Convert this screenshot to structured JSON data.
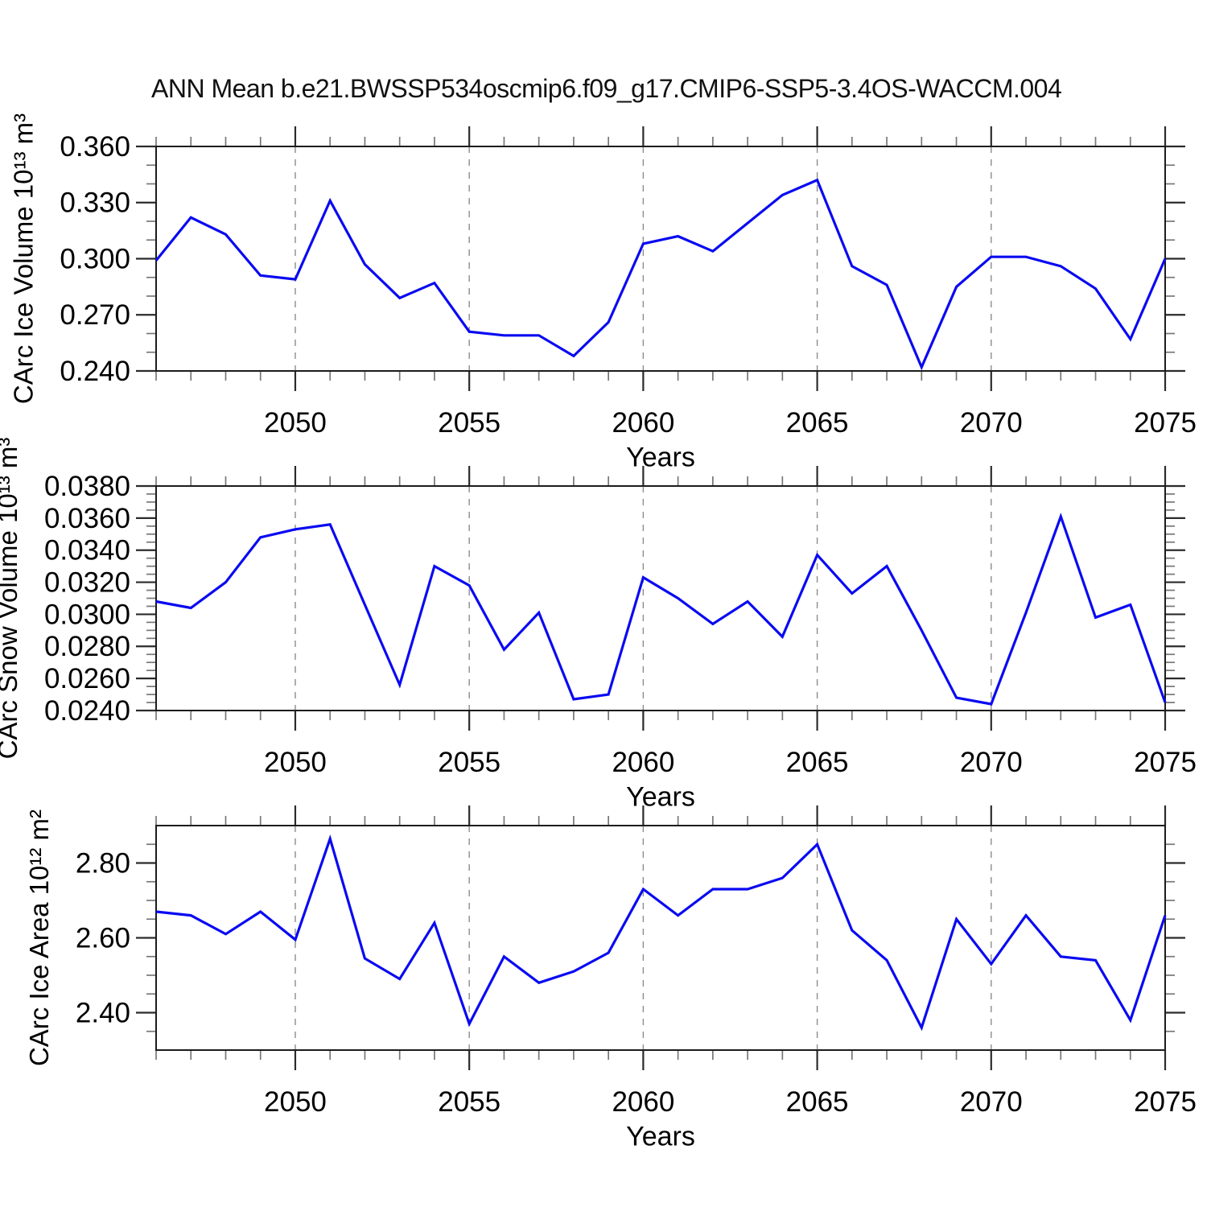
{
  "title": "ANN Mean b.e21.BWSSP534oscmip6.f09_g17.CMIP6-SSP5-3.4OS-WACCM.004",
  "frame_color": "#1c1c1c",
  "grid_color": "#8c8c8c",
  "text_color": "#000000",
  "chart_data": [
    {
      "id": "ice-volume",
      "type": "line",
      "ylabel": "CArc Ice Volume 10¹³ m³",
      "xlabel": "Years",
      "line_color": "#0a0af2",
      "xlim": [
        2046,
        2075
      ],
      "ylim": [
        0.24,
        0.36
      ],
      "x": [
        2046,
        2047,
        2048,
        2049,
        2050,
        2051,
        2052,
        2053,
        2054,
        2055,
        2056,
        2057,
        2058,
        2059,
        2060,
        2061,
        2062,
        2063,
        2064,
        2065,
        2066,
        2067,
        2068,
        2069,
        2070,
        2071,
        2072,
        2073,
        2074,
        2075
      ],
      "values": [
        0.299,
        0.322,
        0.313,
        0.291,
        0.289,
        0.331,
        0.297,
        0.279,
        0.287,
        0.261,
        0.259,
        0.259,
        0.248,
        0.266,
        0.308,
        0.312,
        0.304,
        0.319,
        0.334,
        0.342,
        0.296,
        0.286,
        0.242,
        0.285,
        0.301,
        0.301,
        0.296,
        0.284,
        0.257,
        0.3
      ],
      "yticks": [
        0.24,
        0.27,
        0.3,
        0.33,
        0.36
      ],
      "ytick_labels": [
        "0.240",
        "0.270",
        "0.300",
        "0.330",
        "0.360"
      ],
      "y_minor_step": 0.01,
      "xticks": [
        2050,
        2055,
        2060,
        2065,
        2070,
        2075
      ],
      "xtick_labels": [
        "2050",
        "2055",
        "2060",
        "2065",
        "2070",
        "2075"
      ],
      "x_minor_step": 1,
      "gridlines_x": [
        2050,
        2055,
        2060,
        2065,
        2070
      ],
      "grid_style": "dashed-vertical",
      "legend": "none"
    },
    {
      "id": "snow-volume",
      "type": "line",
      "ylabel": "CArc Snow Volume 10¹³ m³",
      "xlabel": "Years",
      "line_color": "#0a0af2",
      "xlim": [
        2046,
        2075
      ],
      "ylim": [
        0.024,
        0.038
      ],
      "x": [
        2046,
        2047,
        2048,
        2049,
        2050,
        2051,
        2052,
        2053,
        2054,
        2055,
        2056,
        2057,
        2058,
        2059,
        2060,
        2061,
        2062,
        2063,
        2064,
        2065,
        2066,
        2067,
        2068,
        2069,
        2070,
        2071,
        2072,
        2073,
        2074,
        2075
      ],
      "values": [
        0.0308,
        0.0304,
        0.032,
        0.0348,
        0.0353,
        0.0356,
        0.0306,
        0.0256,
        0.033,
        0.0318,
        0.0278,
        0.0301,
        0.0247,
        0.025,
        0.0323,
        0.031,
        0.0294,
        0.0308,
        0.0286,
        0.0337,
        0.0313,
        0.033,
        0.029,
        0.0248,
        0.0244,
        0.0301,
        0.0361,
        0.0298,
        0.0306,
        0.0245
      ],
      "yticks": [
        0.024,
        0.026,
        0.028,
        0.03,
        0.032,
        0.034,
        0.036,
        0.038
      ],
      "ytick_labels": [
        "0.0240",
        "0.0260",
        "0.0280",
        "0.0300",
        "0.0320",
        "0.0340",
        "0.0360",
        "0.0380"
      ],
      "y_minor_step": 0.0005,
      "xticks": [
        2050,
        2055,
        2060,
        2065,
        2070,
        2075
      ],
      "xtick_labels": [
        "2050",
        "2055",
        "2060",
        "2065",
        "2070",
        "2075"
      ],
      "x_minor_step": 1,
      "gridlines_x": [
        2050,
        2055,
        2060,
        2065,
        2070
      ],
      "grid_style": "dashed-vertical",
      "legend": "none"
    },
    {
      "id": "ice-area",
      "type": "line",
      "ylabel": "CArc Ice Area 10¹² m²",
      "xlabel": "Years",
      "line_color": "#0a0af2",
      "xlim": [
        2046,
        2075
      ],
      "ylim": [
        2.3,
        2.9
      ],
      "x": [
        2046,
        2047,
        2048,
        2049,
        2050,
        2051,
        2052,
        2053,
        2054,
        2055,
        2056,
        2057,
        2058,
        2059,
        2060,
        2061,
        2062,
        2063,
        2064,
        2065,
        2066,
        2067,
        2068,
        2069,
        2070,
        2071,
        2072,
        2073,
        2074,
        2075
      ],
      "values": [
        2.67,
        2.66,
        2.61,
        2.67,
        2.595,
        2.865,
        2.545,
        2.49,
        2.64,
        2.37,
        2.55,
        2.48,
        2.51,
        2.56,
        2.73,
        2.66,
        2.73,
        2.73,
        2.76,
        2.85,
        2.62,
        2.54,
        2.36,
        2.65,
        2.53,
        2.66,
        2.55,
        2.54,
        2.38,
        2.66
      ],
      "yticks": [
        2.4,
        2.6,
        2.8
      ],
      "ytick_labels": [
        "2.40",
        "2.60",
        "2.80"
      ],
      "y_minor_step": 0.05,
      "xticks": [
        2050,
        2055,
        2060,
        2065,
        2070,
        2075
      ],
      "xtick_labels": [
        "2050",
        "2055",
        "2060",
        "2065",
        "2070",
        "2075"
      ],
      "x_minor_step": 1,
      "gridlines_x": [
        2050,
        2055,
        2060,
        2065,
        2070
      ],
      "grid_style": "dashed-vertical",
      "legend": "none"
    }
  ]
}
